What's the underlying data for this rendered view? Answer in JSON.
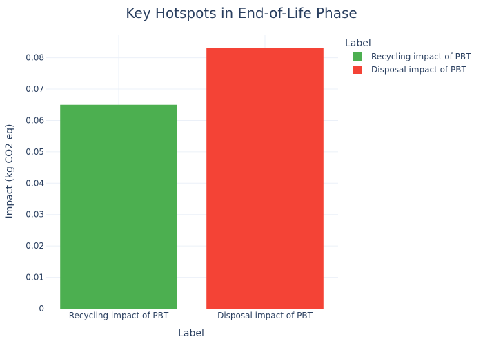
{
  "chart_data": {
    "type": "bar",
    "title": "Key Hotspots in End-of-Life Phase",
    "xlabel": "Label",
    "ylabel": "Impact (kg CO2 eq)",
    "categories": [
      "Recycling impact of PBT",
      "Disposal impact of PBT"
    ],
    "values": [
      0.065,
      0.083
    ],
    "ylim": [
      0,
      0.0874
    ],
    "yticks": [
      0,
      0.01,
      0.02,
      0.03,
      0.04,
      0.05,
      0.06,
      0.07,
      0.08
    ],
    "ytick_labels": [
      "0",
      "0.01",
      "0.02",
      "0.03",
      "0.04",
      "0.05",
      "0.06",
      "0.07",
      "0.08"
    ],
    "colors": [
      "#4caf50",
      "#f44336"
    ],
    "grid": true,
    "legend": {
      "title": "Label",
      "placement": "top-right",
      "entries": [
        "Recycling impact of PBT",
        "Disposal impact of PBT"
      ]
    }
  }
}
